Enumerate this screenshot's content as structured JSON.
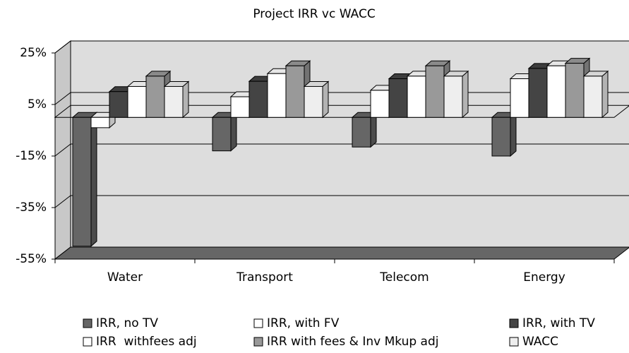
{
  "chart_data": {
    "type": "bar3d",
    "title": "Project IRR vc WACC",
    "categories": [
      "Water",
      "Transport",
      "Telecom",
      "Energy"
    ],
    "series": [
      {
        "name": "IRR, no TV",
        "color": "#666666",
        "values": [
          -50,
          -13,
          -11.5,
          -15
        ]
      },
      {
        "name": "IRR, with FV",
        "color": "#ffffff",
        "values": [
          -4,
          8,
          10.5,
          15
        ]
      },
      {
        "name": "IRR, with TV",
        "color": "#444444",
        "values": [
          10,
          14,
          15,
          19
        ]
      },
      {
        "name": "IRR  withfees adj",
        "color": "#ffffff",
        "values": [
          12,
          17,
          16,
          20
        ]
      },
      {
        "name": "IRR with fees & Inv Mkup adj",
        "color": "#999999",
        "values": [
          16,
          20,
          20,
          21
        ]
      },
      {
        "name": "WACC",
        "color": "#eeeeee",
        "values": [
          12,
          12,
          16,
          16
        ]
      }
    ],
    "ylim": [
      -55,
      25
    ],
    "yticks": [
      {
        "value": 25,
        "label": "25%"
      },
      {
        "value": 5,
        "label": "5%"
      },
      {
        "value": -15,
        "label": "-15%"
      },
      {
        "value": -35,
        "label": "-35%"
      },
      {
        "value": -55,
        "label": "-55%"
      }
    ],
    "grid": true
  }
}
